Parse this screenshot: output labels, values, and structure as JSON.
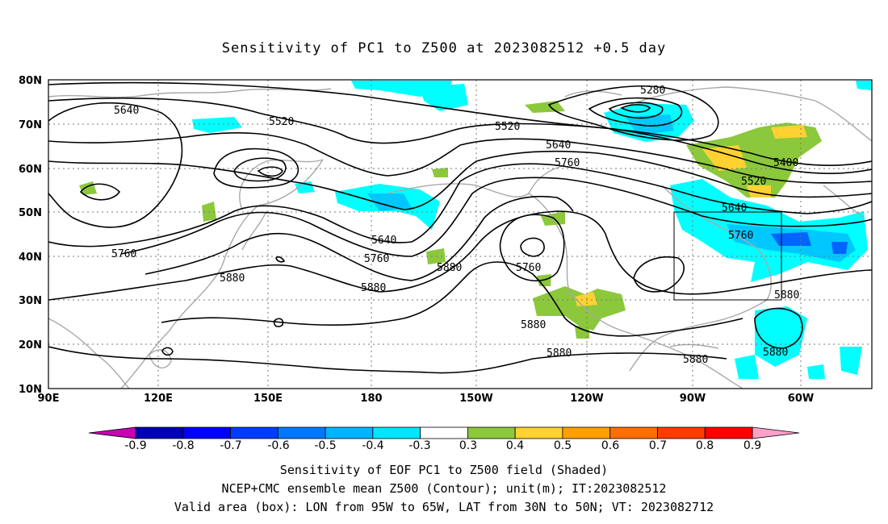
{
  "title": "Sensitivity of PC1 to Z500 at 2023082512 +0.5 day",
  "map": {
    "lat_labels": [
      "80N",
      "70N",
      "60N",
      "50N",
      "40N",
      "30N",
      "20N",
      "10N"
    ],
    "lon_labels": [
      "90E",
      "120E",
      "150E",
      "180",
      "150W",
      "120W",
      "90W",
      "60W"
    ],
    "contour_labels": [
      "5640",
      "5520",
      "5280",
      "5520",
      "5640",
      "5760",
      "5400",
      "5520",
      "5640",
      "5760",
      "5640",
      "5760",
      "5880",
      "5760",
      "5760",
      "5880",
      "5880",
      "5880",
      "5880",
      "5880",
      "5880",
      "5880"
    ],
    "colors": {
      "contour": "#000000",
      "coast": "#a8a8a8",
      "cyan": "#00ffff",
      "light_blue": "#00c8ff",
      "blue": "#0064ff",
      "green": "#8cc83c",
      "yellow": "#ffd232",
      "orange": "#ffa000"
    }
  },
  "colorbar": {
    "labels": [
      "-0.9",
      "-0.8",
      "-0.7",
      "-0.6",
      "-0.5",
      "-0.4",
      "-0.3",
      "0.3",
      "0.4",
      "0.5",
      "0.6",
      "0.7",
      "0.8",
      "0.9"
    ],
    "colors": [
      "#0000b4",
      "#0000ff",
      "#003cff",
      "#0078ff",
      "#00b4ff",
      "#00e6ff",
      "#ffffff",
      "#8cc83c",
      "#ffd232",
      "#ffa000",
      "#ff6e00",
      "#ff3c00",
      "#ff0000"
    ],
    "left_arrow_color": "#c800b4",
    "right_arrow_color": "#ffa0c8"
  },
  "captions": {
    "line1": "Sensitivity of EOF PC1 to Z500 field (Shaded)",
    "line2": "NCEP+CMC ensemble mean Z500 (Contour); unit(m); IT:2023082512",
    "line3": "Valid area (box): LON from 95W to 65W, LAT from 30N to 50N; VT: 2023082712"
  }
}
